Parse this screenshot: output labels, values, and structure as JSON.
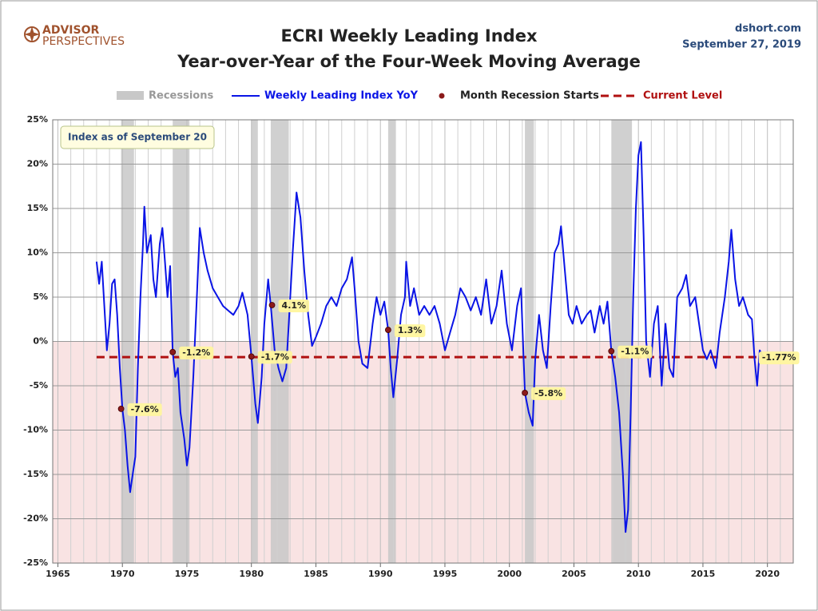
{
  "chart_data": {
    "type": "line",
    "logo": [
      "ADVISOR",
      "PERSPECTIVES"
    ],
    "title": "ECRI Weekly Leading Index",
    "subtitle": "Year-over-Year of the Four-Week Moving Average",
    "source": "dshort.com",
    "date": "September 27, 2019",
    "annotation": "Index as of September 20",
    "xlim": [
      1964.6,
      2022.0
    ],
    "xticks": [
      1965,
      1970,
      1975,
      1980,
      1985,
      1990,
      1995,
      2000,
      2005,
      2010,
      2015,
      2020
    ],
    "x_minor_ticks": [
      1966,
      1967,
      1968,
      1969,
      1971,
      1972,
      1973,
      1974,
      1976,
      1977,
      1978,
      1979,
      1981,
      1982,
      1983,
      1984,
      1986,
      1987,
      1988,
      1989,
      1991,
      1992,
      1993,
      1994,
      1996,
      1997,
      1998,
      1999,
      2001,
      2002,
      2003,
      2004,
      2006,
      2007,
      2008,
      2009,
      2011,
      2012,
      2013,
      2014,
      2016,
      2017,
      2018,
      2019,
      2021
    ],
    "ylim": [
      -25,
      25
    ],
    "yticks": [
      {
        "value": 25,
        "label": "25%"
      },
      {
        "value": 20,
        "label": "20%"
      },
      {
        "value": 15,
        "label": "15%"
      },
      {
        "value": 10,
        "label": "10%"
      },
      {
        "value": 5,
        "label": "5%"
      },
      {
        "value": 0,
        "label": "0%"
      },
      {
        "value": -5,
        "label": "-5%"
      },
      {
        "value": -10,
        "label": "-10%"
      },
      {
        "value": -15,
        "label": "-15%"
      },
      {
        "value": -20,
        "label": "-20%"
      },
      {
        "value": -25,
        "label": "-25%"
      }
    ],
    "grid": true,
    "negative_shading": "#f9e3e3",
    "recessions": {
      "name": "Recessions",
      "color": "#c8c8c8",
      "spans": [
        [
          1969.9,
          1970.9
        ],
        [
          1973.9,
          1975.2
        ],
        [
          1980.0,
          1980.5
        ],
        [
          1981.5,
          1982.9
        ],
        [
          1990.6,
          1991.2
        ],
        [
          2001.2,
          2001.9
        ],
        [
          2007.9,
          2009.5
        ]
      ]
    },
    "x": [
      1968.0,
      1968.2,
      1968.4,
      1968.6,
      1968.8,
      1969.0,
      1969.2,
      1969.4,
      1969.6,
      1969.8,
      1970.0,
      1970.2,
      1970.4,
      1970.6,
      1970.8,
      1971.0,
      1971.2,
      1971.4,
      1971.6,
      1971.7,
      1971.9,
      1972.2,
      1972.4,
      1972.6,
      1972.9,
      1973.1,
      1973.3,
      1973.5,
      1973.7,
      1973.9,
      1974.1,
      1974.3,
      1974.5,
      1974.8,
      1975.0,
      1975.2,
      1975.5,
      1975.8,
      1976.0,
      1976.3,
      1976.6,
      1977.0,
      1977.4,
      1977.8,
      1978.2,
      1978.6,
      1979.0,
      1979.3,
      1979.7,
      1980.0,
      1980.3,
      1980.5,
      1980.8,
      1981.0,
      1981.3,
      1981.5,
      1981.8,
      1982.1,
      1982.4,
      1982.7,
      1982.9,
      1983.2,
      1983.5,
      1983.8,
      1984.1,
      1984.4,
      1984.7,
      1985.0,
      1985.4,
      1985.8,
      1986.2,
      1986.6,
      1987.0,
      1987.4,
      1987.8,
      1988.0,
      1988.3,
      1988.6,
      1989.0,
      1989.4,
      1989.7,
      1990.0,
      1990.3,
      1990.6,
      1990.8,
      1991.0,
      1991.3,
      1991.6,
      1991.9,
      1992.0,
      1992.3,
      1992.6,
      1993.0,
      1993.4,
      1993.8,
      1994.2,
      1994.6,
      1995.0,
      1995.4,
      1995.8,
      1996.2,
      1996.6,
      1997.0,
      1997.4,
      1997.8,
      1998.2,
      1998.6,
      1999.0,
      1999.4,
      1999.8,
      2000.2,
      2000.6,
      2000.9,
      2001.2,
      2001.5,
      2001.8,
      2002.0,
      2002.3,
      2002.6,
      2002.9,
      2003.2,
      2003.5,
      2003.8,
      2004.0,
      2004.3,
      2004.6,
      2004.9,
      2005.2,
      2005.6,
      2006.0,
      2006.3,
      2006.6,
      2007.0,
      2007.3,
      2007.6,
      2007.9,
      2008.2,
      2008.5,
      2008.8,
      2009.0,
      2009.2,
      2009.4,
      2009.6,
      2009.8,
      2010.0,
      2010.2,
      2010.4,
      2010.6,
      2010.9,
      2011.2,
      2011.5,
      2011.8,
      2012.1,
      2012.4,
      2012.7,
      2013.0,
      2013.4,
      2013.7,
      2014.0,
      2014.4,
      2014.7,
      2015.0,
      2015.3,
      2015.6,
      2016.0,
      2016.3,
      2016.7,
      2017.0,
      2017.2,
      2017.5,
      2017.8,
      2018.1,
      2018.5,
      2018.8,
      2019.0,
      2019.2,
      2019.4,
      2019.7
    ],
    "series": [
      {
        "name": "Weekly Leading Index YoY",
        "color": "#0a14e6",
        "values": [
          9,
          6.5,
          9,
          4,
          -1,
          2,
          6.5,
          7,
          3,
          -3,
          -7.6,
          -10,
          -14,
          -17,
          -15,
          -13,
          -3,
          5,
          11,
          15.2,
          10,
          12,
          7,
          5,
          11,
          12.8,
          9,
          5,
          8.5,
          -1.2,
          -4,
          -3,
          -8,
          -11,
          -14,
          -12,
          -4,
          6,
          12.8,
          10,
          8,
          6,
          5,
          4,
          3.5,
          3,
          4,
          5.5,
          3,
          -1.7,
          -7,
          -9.2,
          -4,
          2,
          7,
          4.1,
          -1,
          -3,
          -4.5,
          -3,
          2,
          10,
          16.8,
          14,
          8,
          3,
          -0.5,
          0.5,
          2,
          4,
          5,
          4,
          6,
          7,
          9.5,
          6,
          0,
          -2.5,
          -3,
          2,
          5,
          3,
          4.5,
          1.3,
          -3,
          -6.3,
          -2,
          3,
          5,
          9,
          4,
          6,
          3,
          4,
          3,
          4,
          2,
          -1,
          1,
          3,
          6,
          5,
          3.5,
          5,
          3,
          7,
          2,
          4,
          8,
          2,
          -1,
          4,
          6,
          -5.8,
          -8,
          -9.5,
          -2,
          3,
          -1,
          -3,
          4,
          10,
          11,
          13,
          8,
          3,
          2,
          4,
          2,
          3,
          3.5,
          1,
          4,
          2,
          4.5,
          -1.1,
          -4,
          -8,
          -15,
          -21.5,
          -19,
          -8,
          5,
          15,
          21,
          22.5,
          12,
          0,
          -4,
          2,
          4,
          -5,
          2,
          -3,
          -4,
          5,
          6,
          7.5,
          4,
          5,
          2,
          -1,
          -2,
          -1,
          -3,
          1,
          5,
          9,
          12.6,
          7,
          4,
          5,
          3,
          2.5,
          -2,
          -5,
          -1,
          -1.77
        ]
      }
    ],
    "recession_starts": {
      "name": "Month Recession Starts",
      "color": "#8b1a1a",
      "x": [
        1969.9,
        1973.9,
        1980.0,
        1981.6,
        1990.6,
        2001.2,
        2007.9
      ],
      "values": [
        -7.6,
        -1.2,
        -1.7,
        4.1,
        1.3,
        -5.8,
        -1.1
      ],
      "value_labels": [
        "-7.6%",
        "-1.2%",
        "-1.7%",
        "4.1%",
        "1.3%",
        "-5.8%",
        "-1.1%"
      ]
    },
    "current_level": {
      "name": "Current Level",
      "color": "#b01010",
      "value": -1.77,
      "value_label": "-1.77%"
    }
  }
}
